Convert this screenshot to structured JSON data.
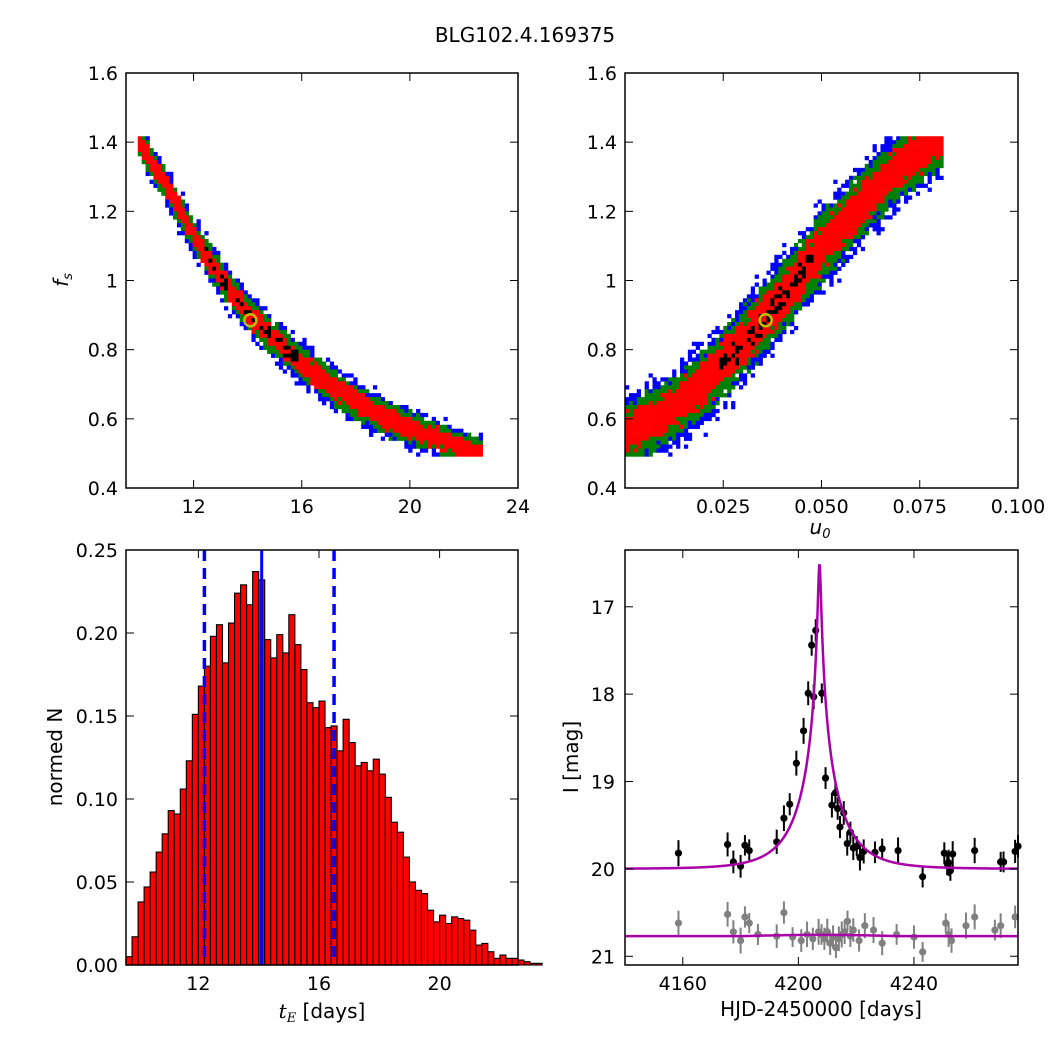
{
  "suptitle": "BLG102.4.169375",
  "colors": {
    "blue": "#0000ff",
    "green": "#008000",
    "red": "#ff0000",
    "black": "#000000",
    "marker_edge": "#bfbf00",
    "hist_fill": "#ff0000",
    "model": "#aa00aa",
    "second_lc": "#808080"
  },
  "chart_data": [
    {
      "type": "heatmap",
      "panel": "tE vs fs posterior",
      "xlabel": "",
      "ylabel": "f",
      "ylabel_sub": "s",
      "xlim": [
        9.5,
        24
      ],
      "ylim": [
        0.4,
        1.6
      ],
      "xticks": [
        12,
        16,
        20,
        24
      ],
      "yticks": [
        0.4,
        0.6,
        0.8,
        1.0,
        1.2,
        1.4,
        1.6
      ],
      "grid": false,
      "levels": [
        "blue",
        "green",
        "red",
        "black"
      ],
      "ridge": {
        "x": [
          10.0,
          11.0,
          12.0,
          13.0,
          14.0,
          15.0,
          16.0,
          17.0,
          18.0,
          19.0,
          20.0,
          21.0,
          22.0,
          22.6
        ],
        "y": [
          1.4,
          1.27,
          1.13,
          1.01,
          0.905,
          0.83,
          0.76,
          0.7,
          0.65,
          0.605,
          0.575,
          0.545,
          0.515,
          0.505
        ]
      },
      "best_fit": {
        "x": 14.1,
        "y": 0.885
      }
    },
    {
      "type": "heatmap",
      "panel": "u0 vs fs posterior",
      "xlabel": "u",
      "xlabel_sub": "0",
      "ylabel": "",
      "xlim": [
        0.0,
        0.1
      ],
      "ylim": [
        0.4,
        1.6
      ],
      "xticks": [
        0.025,
        0.05,
        0.075,
        0.1
      ],
      "xtick_labels": [
        "0.025",
        "0.050",
        "0.075",
        "0.100"
      ],
      "yticks": [
        0.4,
        0.6,
        0.8,
        1.0,
        1.2,
        1.4,
        1.6
      ],
      "grid": false,
      "levels": [
        "blue",
        "green",
        "red",
        "black"
      ],
      "ridge": {
        "x": [
          0.0,
          0.01,
          0.02,
          0.03,
          0.04,
          0.05,
          0.06,
          0.07,
          0.08
        ],
        "y": [
          0.56,
          0.61,
          0.7,
          0.82,
          0.95,
          1.09,
          1.22,
          1.33,
          1.41
        ]
      },
      "best_fit": {
        "x": 0.0358,
        "y": 0.885
      }
    },
    {
      "type": "bar",
      "panel": "tE histogram",
      "xlabel": "t",
      "xlabel_sub": "E",
      "xlabel_rest": " [days]",
      "ylabel": "normed N",
      "xlim": [
        9.6,
        22.6
      ],
      "ylim": [
        0.0,
        0.25
      ],
      "xticks": [
        12,
        16,
        20
      ],
      "yticks": [
        0.0,
        0.05,
        0.1,
        0.15,
        0.2,
        0.25
      ],
      "ytick_labels": [
        "0.00",
        "0.05",
        "0.10",
        "0.15",
        "0.20",
        "0.25"
      ],
      "grid": false,
      "bin_start": 9.6,
      "bin_width": 0.2,
      "values": [
        0.005,
        0.017,
        0.038,
        0.047,
        0.056,
        0.068,
        0.079,
        0.093,
        0.091,
        0.106,
        0.123,
        0.151,
        0.168,
        0.18,
        0.198,
        0.205,
        0.182,
        0.206,
        0.224,
        0.229,
        0.217,
        0.237,
        0.232,
        0.196,
        0.185,
        0.199,
        0.188,
        0.211,
        0.193,
        0.178,
        0.158,
        0.155,
        0.159,
        0.143,
        0.144,
        0.129,
        0.148,
        0.134,
        0.12,
        0.122,
        0.117,
        0.124,
        0.115,
        0.101,
        0.086,
        0.08,
        0.065,
        0.05,
        0.045,
        0.043,
        0.033,
        0.026,
        0.03,
        0.025,
        0.029,
        0.028,
        0.027,
        0.021,
        0.012,
        0.013,
        0.008,
        0.004,
        0.006,
        0.004,
        0.004,
        0.003,
        0.002,
        0.001,
        0.001
      ],
      "median": 14.1,
      "interval": [
        12.2,
        16.5
      ]
    },
    {
      "type": "scatter",
      "panel": "light curve",
      "xlabel": "HJD-2450000 [days]",
      "ylabel": "I [mag]",
      "xlim": [
        4140,
        4276
      ],
      "ylim": [
        21.1,
        16.35
      ],
      "xticks": [
        4160,
        4200,
        4240
      ],
      "yticks": [
        17,
        18,
        19,
        20,
        21
      ],
      "grid": false,
      "model": {
        "t0": 4207.3,
        "u0": 0.0358,
        "tE": 14.1,
        "fs": 0.885,
        "base_mag": 20.0,
        "second_base": 20.77
      },
      "series": [
        {
          "color": "black",
          "x": [
            4158.5,
            4175.5,
            4177.5,
            4180.0,
            4181.5,
            4183.0,
            4192.5,
            4195.0,
            4197.0,
            4199.3,
            4201.8,
            4203.4,
            4204.6,
            4205.3,
            4206.0,
            4208.1,
            4209.4,
            4211.6,
            4212.8,
            4213.6,
            4214.4,
            4215.7,
            4216.9,
            4218.0,
            4219.0,
            4220.2,
            4221.3,
            4222.6,
            4226.5,
            4229.0,
            4234.5,
            4243.0,
            4250.5,
            4251.5,
            4252.0,
            4252.6,
            4253.4,
            4261.0,
            4270.0,
            4271.0,
            4275.0,
            4276.0
          ],
          "y": [
            19.82,
            19.72,
            19.92,
            19.97,
            19.73,
            19.79,
            19.69,
            19.42,
            19.26,
            18.79,
            18.42,
            17.99,
            17.44,
            18.03,
            17.27,
            17.99,
            18.96,
            19.27,
            19.13,
            19.31,
            19.52,
            19.36,
            19.71,
            19.58,
            19.76,
            19.74,
            19.87,
            19.8,
            19.81,
            19.77,
            19.79,
            20.09,
            19.82,
            19.94,
            19.93,
            20.02,
            19.83,
            19.79,
            19.92,
            19.92,
            19.8,
            19.74
          ]
        },
        {
          "color": "gray",
          "x": [
            4158.5,
            4175.5,
            4177.5,
            4180.0,
            4181.5,
            4183.0,
            4186.0,
            4192.5,
            4195.0,
            4198.0,
            4201.0,
            4203.0,
            4205.0,
            4207.0,
            4208.0,
            4209.0,
            4210.0,
            4211.0,
            4212.0,
            4213.0,
            4214.0,
            4215.0,
            4216.0,
            4217.0,
            4218.0,
            4219.0,
            4221.0,
            4223.0,
            4226.0,
            4229.0,
            4234.0,
            4240.0,
            4243.0,
            4251.0,
            4252.0,
            4253.0,
            4258.0,
            4261.0,
            4268.0,
            4270.0,
            4275.0
          ],
          "y": [
            20.62,
            20.52,
            20.72,
            20.82,
            20.55,
            20.62,
            20.75,
            20.77,
            20.5,
            20.78,
            20.82,
            20.75,
            20.8,
            20.72,
            20.75,
            20.8,
            20.72,
            20.85,
            20.78,
            20.9,
            20.8,
            20.75,
            20.72,
            20.6,
            20.77,
            20.7,
            20.82,
            20.65,
            20.7,
            20.85,
            20.75,
            20.78,
            20.95,
            20.62,
            20.75,
            20.82,
            20.65,
            20.55,
            20.7,
            20.65,
            20.55
          ]
        }
      ]
    }
  ]
}
